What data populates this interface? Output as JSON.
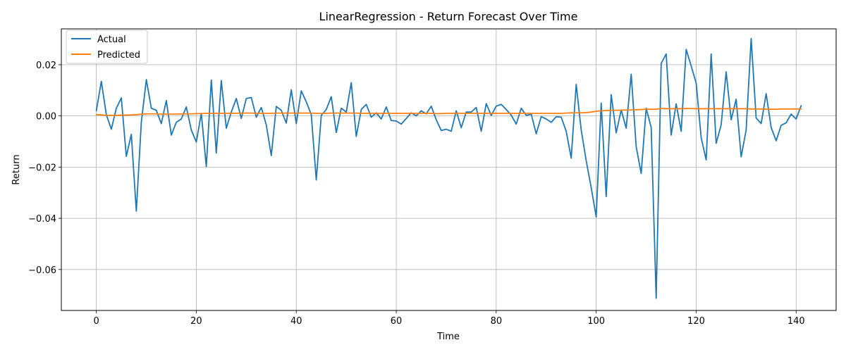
{
  "chart_data": {
    "type": "line",
    "title": "LinearRegression - Return Forecast Over Time",
    "xlabel": "Time",
    "ylabel": "Return",
    "xlim": [
      -7,
      148
    ],
    "ylim": [
      -0.076,
      0.034
    ],
    "xticks": [
      0,
      20,
      40,
      60,
      80,
      100,
      120,
      140
    ],
    "xtick_labels": [
      "0",
      "20",
      "40",
      "60",
      "80",
      "100",
      "120",
      "140"
    ],
    "yticks": [
      -0.06,
      -0.04,
      -0.02,
      0.0,
      0.02
    ],
    "ytick_labels": [
      "−0.06",
      "−0.04",
      "−0.02",
      "0.00",
      "0.02"
    ],
    "grid": true,
    "legend_position": "top-left",
    "series": [
      {
        "name": "Actual",
        "color": "#1f77b4",
        "values": [
          0.002,
          0.0135,
          0.0005,
          -0.0052,
          0.003,
          0.007,
          -0.0158,
          -0.0072,
          -0.0372,
          -0.0025,
          0.0142,
          0.003,
          0.0022,
          -0.003,
          0.006,
          -0.0075,
          -0.0025,
          -0.0012,
          0.0035,
          -0.0055,
          -0.0102,
          0.001,
          -0.0198,
          0.014,
          -0.0145,
          0.0138,
          -0.0048,
          0.0015,
          0.0068,
          -0.001,
          0.0068,
          0.0072,
          -0.0005,
          0.0033,
          -0.0035,
          -0.0155,
          0.0037,
          0.0022,
          -0.0028,
          0.0102,
          -0.003,
          0.0098,
          0.0055,
          0.0005,
          -0.025,
          0.0002,
          0.0025,
          0.0075,
          -0.0065,
          0.003,
          0.0015,
          0.013,
          -0.008,
          0.0025,
          0.0045,
          -0.0005,
          0.0012,
          -0.0012,
          0.0035,
          -0.0018,
          -0.002,
          -0.0032,
          -0.001,
          0.0012,
          0.0,
          0.002,
          0.0008,
          0.0038,
          -0.0015,
          -0.0057,
          -0.0052,
          -0.006,
          0.002,
          -0.0046,
          0.0015,
          0.0015,
          0.0033,
          -0.006,
          0.0048,
          0.0002,
          0.0038,
          0.0045,
          0.0025,
          0.0003,
          -0.0032,
          0.003,
          0.0002,
          0.0007,
          -0.007,
          -0.0003,
          -0.0012,
          -0.0025,
          -0.0003,
          -0.0005,
          -0.006,
          -0.0165,
          0.0123,
          -0.0055,
          -0.0175,
          -0.028,
          -0.0395,
          0.005,
          -0.0315,
          0.0083,
          -0.0066,
          0.0023,
          -0.0048,
          0.0163,
          -0.012,
          -0.0225,
          0.003,
          -0.0045,
          -0.0712,
          0.0205,
          0.0242,
          -0.0075,
          0.0047,
          -0.006,
          0.026,
          0.0195,
          0.0128,
          -0.0085,
          -0.0172,
          0.0242,
          -0.0107,
          -0.0035,
          0.0172,
          -0.0015,
          0.0065,
          -0.016,
          -0.0055,
          0.0302,
          -0.0008,
          -0.003,
          0.0087,
          -0.0045,
          -0.0097,
          -0.0037,
          -0.0027,
          0.0007,
          -0.0012,
          0.004
        ]
      },
      {
        "name": "Predicted",
        "color": "#ff7f0e",
        "values": [
          0.0005,
          0.0004,
          0.0002,
          0.0002,
          0.0002,
          0.0003,
          0.0003,
          0.0004,
          0.0005,
          0.0007,
          0.0008,
          0.0008,
          0.0008,
          0.0007,
          0.0007,
          0.0007,
          0.0007,
          0.0008,
          0.0008,
          0.0008,
          0.0009,
          0.0009,
          0.001,
          0.001,
          0.001,
          0.001,
          0.001,
          0.001,
          0.001,
          0.0011,
          0.0011,
          0.0011,
          0.001,
          0.001,
          0.001,
          0.001,
          0.0011,
          0.0011,
          0.0011,
          0.0011,
          0.0011,
          0.0011,
          0.0011,
          0.0011,
          0.001,
          0.001,
          0.001,
          0.0011,
          0.0011,
          0.0011,
          0.0011,
          0.0011,
          0.0011,
          0.001,
          0.001,
          0.001,
          0.001,
          0.001,
          0.001,
          0.001,
          0.001,
          0.001,
          0.001,
          0.001,
          0.001,
          0.001,
          0.001,
          0.001,
          0.0009,
          0.0009,
          0.001,
          0.001,
          0.001,
          0.001,
          0.001,
          0.001,
          0.001,
          0.001,
          0.001,
          0.001,
          0.001,
          0.001,
          0.001,
          0.001,
          0.001,
          0.001,
          0.001,
          0.001,
          0.001,
          0.001,
          0.001,
          0.001,
          0.001,
          0.001,
          0.0011,
          0.0012,
          0.0012,
          0.0012,
          0.0013,
          0.0015,
          0.0018,
          0.002,
          0.0021,
          0.0022,
          0.0022,
          0.0022,
          0.0023,
          0.0023,
          0.0024,
          0.0025,
          0.0026,
          0.0026,
          0.0026,
          0.0029,
          0.0028,
          0.0028,
          0.0028,
          0.0028,
          0.0029,
          0.0029,
          0.0028,
          0.0028,
          0.0028,
          0.0028,
          0.0028,
          0.0028,
          0.0028,
          0.0028,
          0.0028,
          0.0028,
          0.0028,
          0.0027,
          0.0027,
          0.0027,
          0.0026,
          0.0026,
          0.0026,
          0.0027,
          0.0027,
          0.0027,
          0.0027,
          0.0027
        ]
      }
    ]
  }
}
